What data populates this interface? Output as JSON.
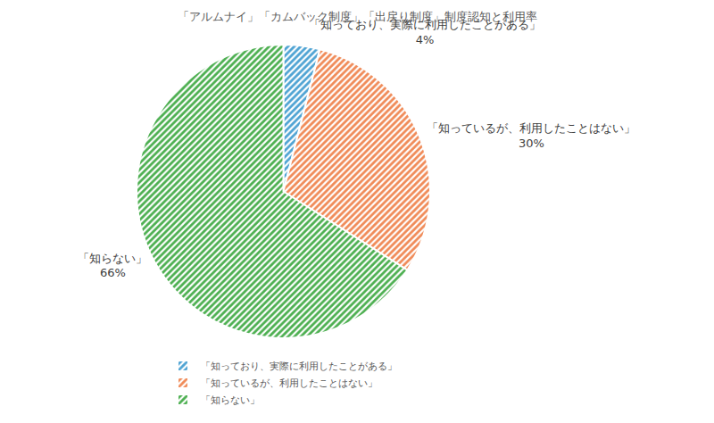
{
  "chart_data": {
    "type": "pie",
    "title": "「アルムナイ」「カムバック制度」「出戻り制度」制度認知と利用率",
    "categories": [
      "「知っており、実際に利用したことがある」",
      "「知っているが、利用したことはない」",
      "「知らない」"
    ],
    "values": [
      4,
      30,
      66
    ],
    "value_labels": [
      "4%",
      "30%",
      "66%"
    ],
    "colors": [
      "#4ea3d3",
      "#f08a57",
      "#4caf50"
    ],
    "data_labels": true,
    "legend": "bottom"
  }
}
